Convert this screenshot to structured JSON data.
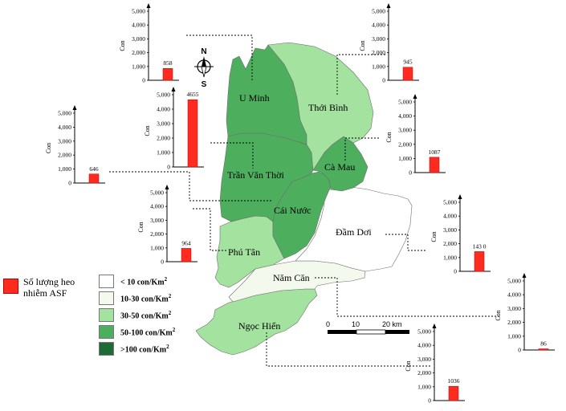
{
  "map": {
    "districts": [
      {
        "name": "U Minh",
        "color": "#4daf5e",
        "density_class": "50-100 con/Km2",
        "asf_count": 858
      },
      {
        "name": "Thới Bình",
        "color": "#a4e2a0",
        "density_class": "30-50 con/Km2",
        "asf_count": 945
      },
      {
        "name": "Trần Văn Thời",
        "color": "#4daf5e",
        "density_class": "50-100 con/Km2",
        "asf_count": 4655
      },
      {
        "name": "Cà Mau",
        "color": "#4daf5e",
        "density_class": "50-100 con/Km2",
        "asf_count": 1087
      },
      {
        "name": "Cái Nước",
        "color": "#4daf5e",
        "density_class": "50-100 con/Km2",
        "asf_count": 646
      },
      {
        "name": "Phú Tân",
        "color": "#a4e2a0",
        "density_class": "30-50 con/Km2",
        "asf_count": 964
      },
      {
        "name": "Đầm Dơi",
        "color": "#ffffff",
        "density_class": "< 10 con/Km2",
        "asf_count": 1430
      },
      {
        "name": "Năm Căn",
        "color": "#f3f9ec",
        "density_class": "10-30 con/Km2",
        "asf_count": 86
      },
      {
        "name": "Ngọc Hiển",
        "color": "#a4e2a0",
        "density_class": "30-50 con/Km2",
        "asf_count": 1036
      }
    ],
    "compass": {
      "north": "N",
      "south": "S"
    },
    "scale": {
      "tick0": "0",
      "tick1": "10",
      "tick2": "20 km"
    }
  },
  "legend": {
    "asf_label": "Số lượng heo nhiễm ASF",
    "asf_color": "#ff2b1f",
    "density_classes": [
      {
        "color": "#ffffff",
        "label": "< 10 con/Km",
        "sup": "2"
      },
      {
        "color": "#f3f9ec",
        "label": "10-30 con/Km",
        "sup": "2"
      },
      {
        "color": "#a4e2a0",
        "label": "30-50 con/Km",
        "sup": "2"
      },
      {
        "color": "#4daf5e",
        "label": "50-100 con/Km",
        "sup": "2"
      },
      {
        "color": "#1f6b34",
        "label": ">100 con/Km",
        "sup": "2"
      }
    ]
  },
  "charts": {
    "axis_label": "Con",
    "bar_color": "#ff2b1f",
    "ticks": [
      "0",
      "1,000",
      "2,000",
      "3,000",
      "4,000",
      "5,000"
    ],
    "ymax": 5000,
    "items": [
      {
        "district": "U Minh",
        "value": 858,
        "value_label": "858"
      },
      {
        "district": "Thới Bình",
        "value": 945,
        "value_label": "945"
      },
      {
        "district": "Trần Văn Thời",
        "value": 4655,
        "value_label": "4655"
      },
      {
        "district": "Cà Mau",
        "value": 1087,
        "value_label": "1087"
      },
      {
        "district": "Cái Nước",
        "value": 646,
        "value_label": "646"
      },
      {
        "district": "Phú Tân",
        "value": 964,
        "value_label": "964"
      },
      {
        "district": "Đầm Dơi",
        "value": 1430,
        "value_label": "143 0"
      },
      {
        "district": "Năm Căn",
        "value": 86,
        "value_label": "86"
      },
      {
        "district": "Ngọc Hiển",
        "value": 1036,
        "value_label": "1036"
      }
    ]
  }
}
